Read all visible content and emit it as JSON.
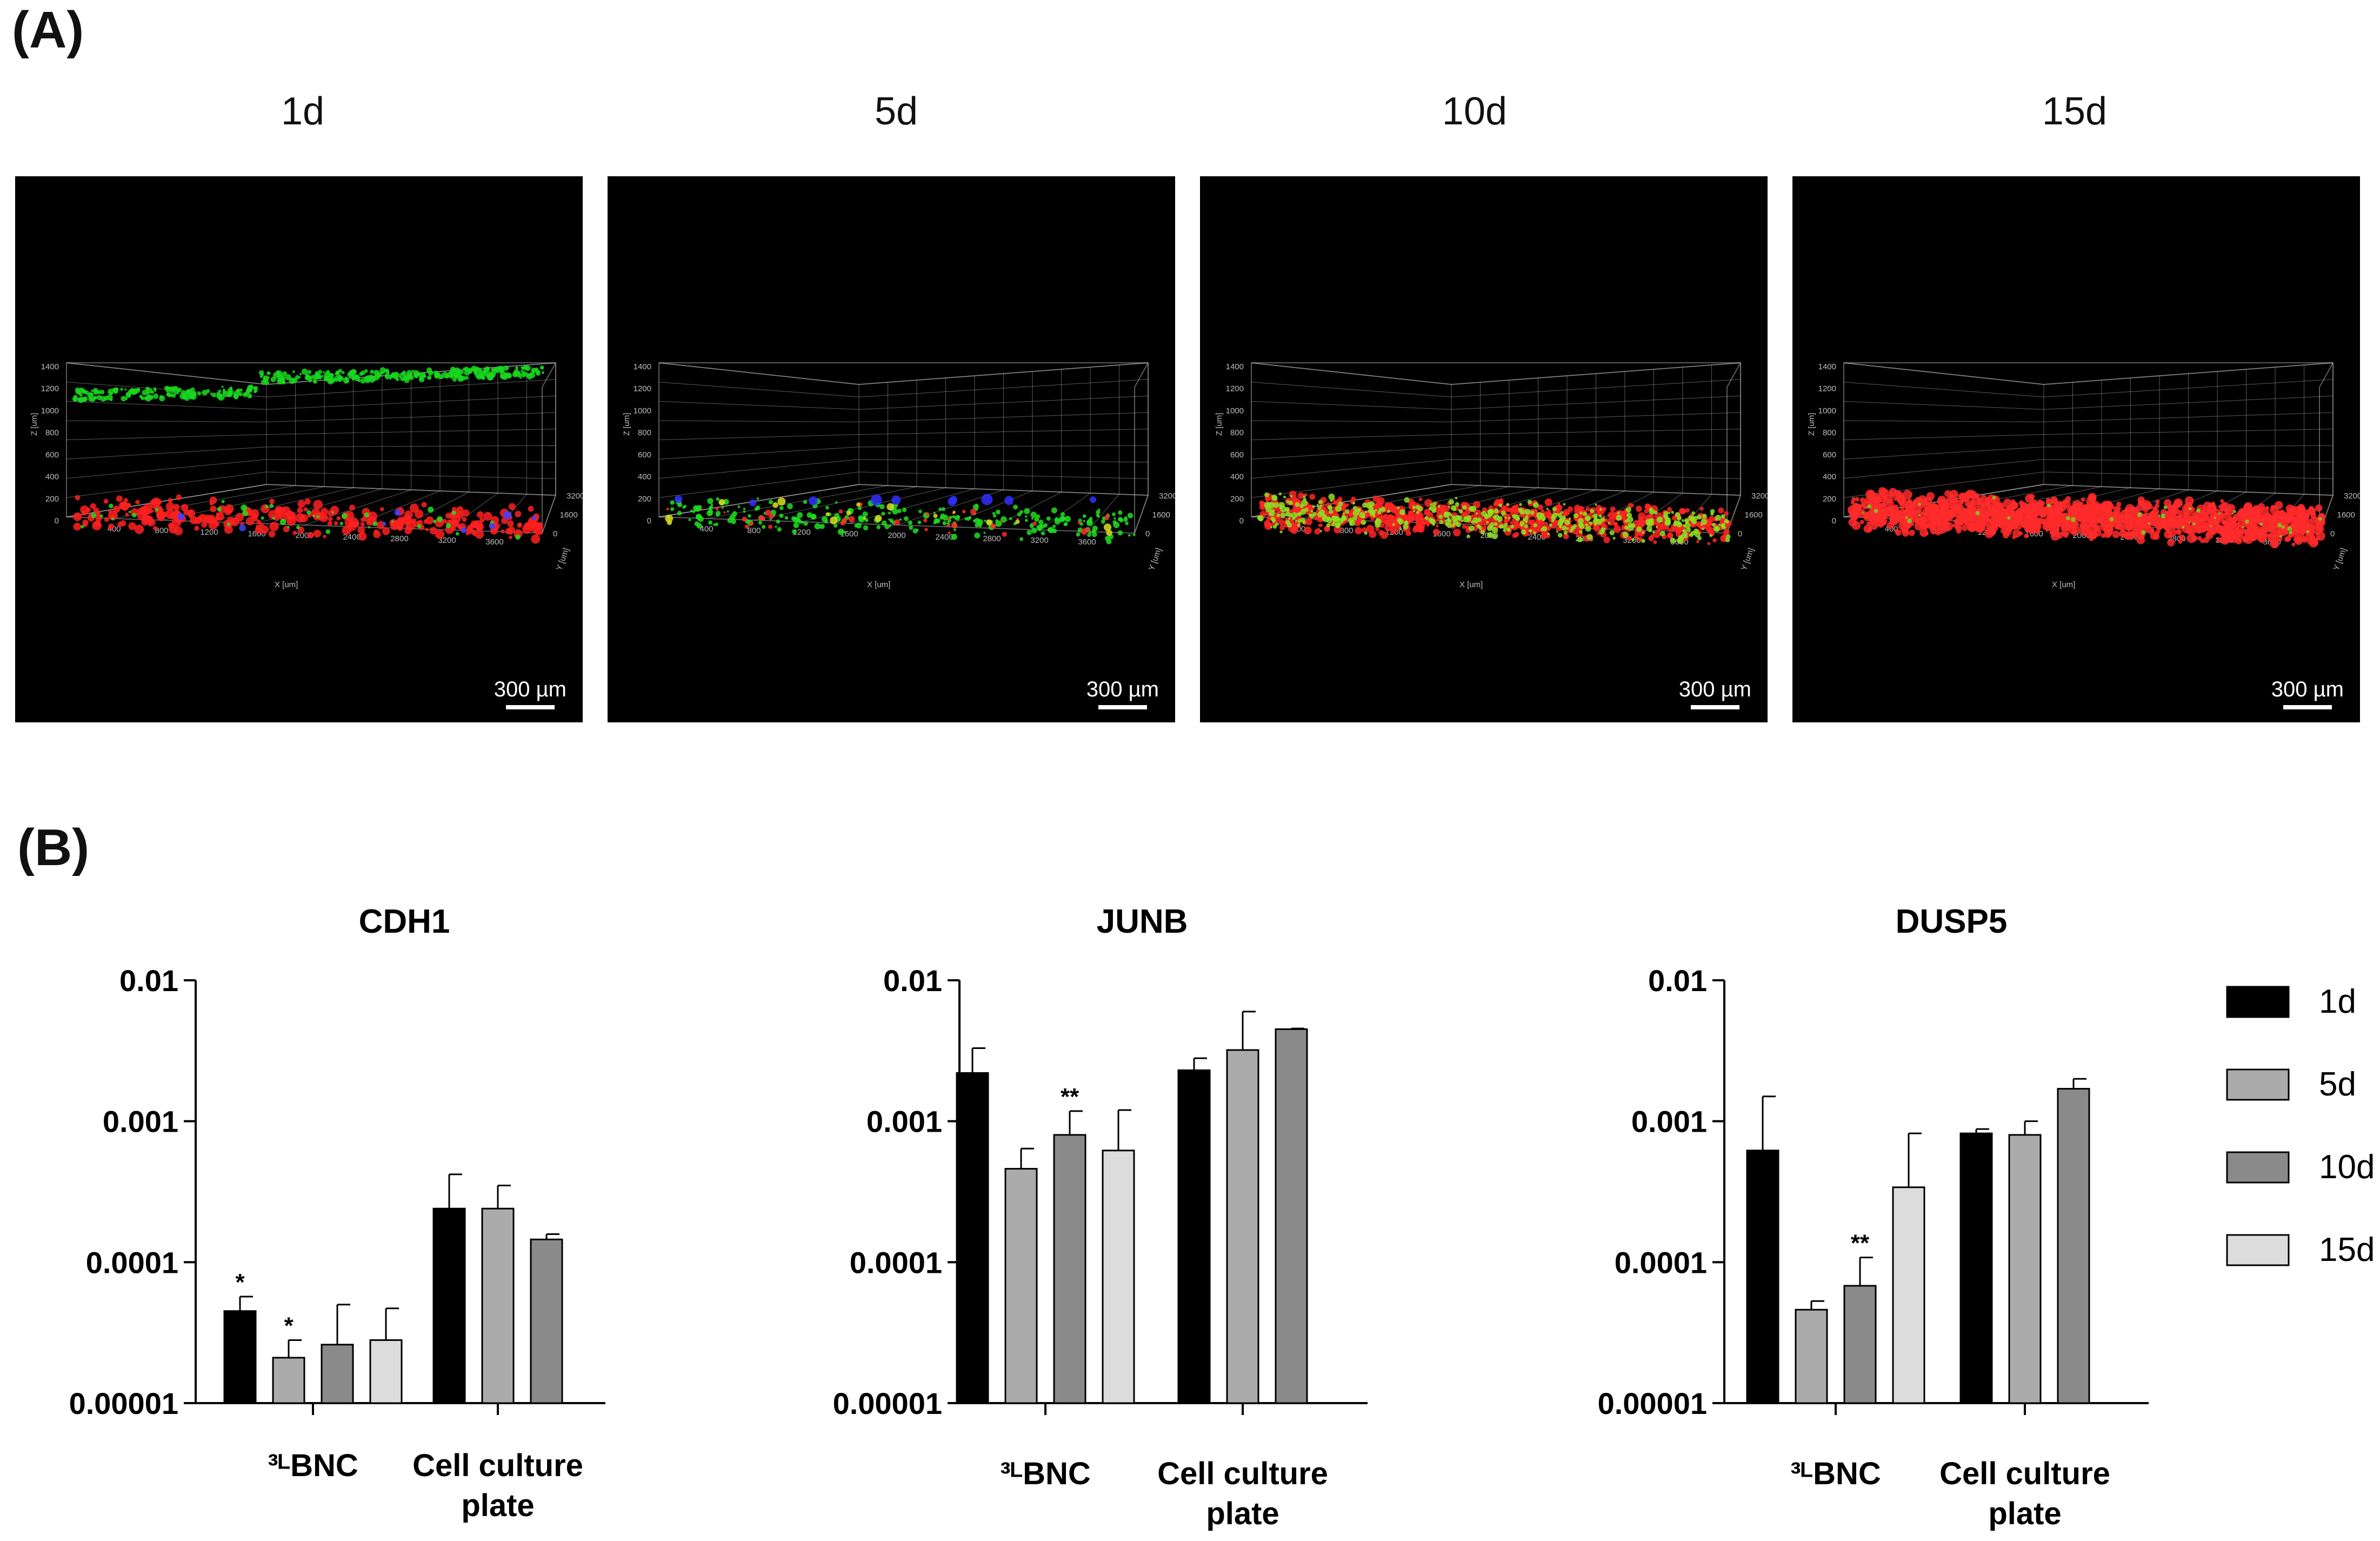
{
  "panels": {
    "a_label": "(A)",
    "b_label": "(B)"
  },
  "microscopy": [
    {
      "time": "1d",
      "scale": "300 µm"
    },
    {
      "time": "5d",
      "scale": "300 µm"
    },
    {
      "time": "10d",
      "scale": "300 µm"
    },
    {
      "time": "15d",
      "scale": "300 µm"
    }
  ],
  "stage_axes": {
    "x_label": "X [um]",
    "y_label": "Y [um]",
    "z_label": "Z [um]",
    "x_ticks": [
      "400",
      "800",
      "1200",
      "1600",
      "2000",
      "2400",
      "2800",
      "3200",
      "3600"
    ],
    "z_ticks": [
      "0",
      "200",
      "400",
      "600",
      "800",
      "1000",
      "1200",
      "1400"
    ],
    "y_ticks": [
      "0",
      "1600",
      "3200"
    ]
  },
  "colors": {
    "1d": "#000000",
    "5d": "#ababab",
    "10d": "#8a8a8a",
    "15d": "#dcdcdc",
    "bar_edge": "#000000"
  },
  "legend": {
    "entries": [
      "1d",
      "5d",
      "10d",
      "15d"
    ]
  },
  "chart_data": [
    {
      "type": "bar",
      "title": "CDH1",
      "yscale": "log",
      "ylim": [
        1e-05,
        0.01
      ],
      "yticks": [
        "0.01",
        "0.001",
        "0.0001",
        "0.00001"
      ],
      "categories": [
        "³ᴸBNC",
        "Cell culture plate"
      ],
      "category_lines": [
        [
          "³ᴸBNC"
        ],
        [
          "Cell culture",
          "plate"
        ]
      ],
      "series": [
        {
          "name": "1d",
          "values": [
            4.5e-05,
            0.00024
          ],
          "errors": [
            5.7e-05,
            0.00042
          ]
        },
        {
          "name": "5d",
          "values": [
            2.1e-05,
            0.00024
          ],
          "errors": [
            2.8e-05,
            0.00035
          ]
        },
        {
          "name": "10d",
          "values": [
            2.6e-05,
            0.000145
          ],
          "errors": [
            5e-05,
            0.000158
          ]
        },
        {
          "name": "15d",
          "values": [
            2.8e-05,
            null
          ],
          "errors": [
            4.7e-05,
            null
          ]
        }
      ],
      "annotations": [
        {
          "category": 0,
          "series": 0,
          "text": "*"
        },
        {
          "category": 0,
          "series": 1,
          "text": "*"
        }
      ]
    },
    {
      "type": "bar",
      "title": "JUNB",
      "yscale": "log",
      "ylim": [
        1e-05,
        0.01
      ],
      "yticks": [
        "0.01",
        "0.001",
        "0.0001",
        "0.00001"
      ],
      "categories": [
        "³ᴸBNC",
        "Cell culture plate"
      ],
      "category_lines": [
        [
          "³ᴸBNC"
        ],
        [
          "Cell culture",
          "plate"
        ]
      ],
      "series": [
        {
          "name": "1d",
          "values": [
            0.0022,
            0.0023
          ],
          "errors": [
            0.0033,
            0.0028
          ]
        },
        {
          "name": "5d",
          "values": [
            0.00046,
            0.0032
          ],
          "errors": [
            0.00064,
            0.006
          ]
        },
        {
          "name": "10d",
          "values": [
            0.0008,
            0.0045
          ],
          "errors": [
            0.00118,
            0.00455
          ]
        },
        {
          "name": "15d",
          "values": [
            0.00062,
            null
          ],
          "errors": [
            0.0012,
            null
          ]
        }
      ],
      "annotations": [
        {
          "category": 0,
          "series": 2,
          "text": "**"
        }
      ]
    },
    {
      "type": "bar",
      "title": "DUSP5",
      "yscale": "log",
      "ylim": [
        1e-05,
        0.01
      ],
      "yticks": [
        "0.01",
        "0.001",
        "0.0001",
        "0.00001"
      ],
      "categories": [
        "³ᴸBNC",
        "Cell culture plate"
      ],
      "category_lines": [
        [
          "³ᴸBNC"
        ],
        [
          "Cell culture",
          "plate"
        ]
      ],
      "series": [
        {
          "name": "1d",
          "values": [
            0.00062,
            0.00082
          ],
          "errors": [
            0.0015,
            0.00088
          ]
        },
        {
          "name": "5d",
          "values": [
            4.6e-05,
            0.0008
          ],
          "errors": [
            5.3e-05,
            0.001
          ]
        },
        {
          "name": "10d",
          "values": [
            6.8e-05,
            0.0017
          ],
          "errors": [
            0.000108,
            0.002
          ]
        },
        {
          "name": "15d",
          "values": [
            0.00034,
            null
          ],
          "errors": [
            0.00082,
            null
          ]
        }
      ],
      "annotations": [
        {
          "category": 0,
          "series": 2,
          "text": "**"
        }
      ]
    }
  ]
}
